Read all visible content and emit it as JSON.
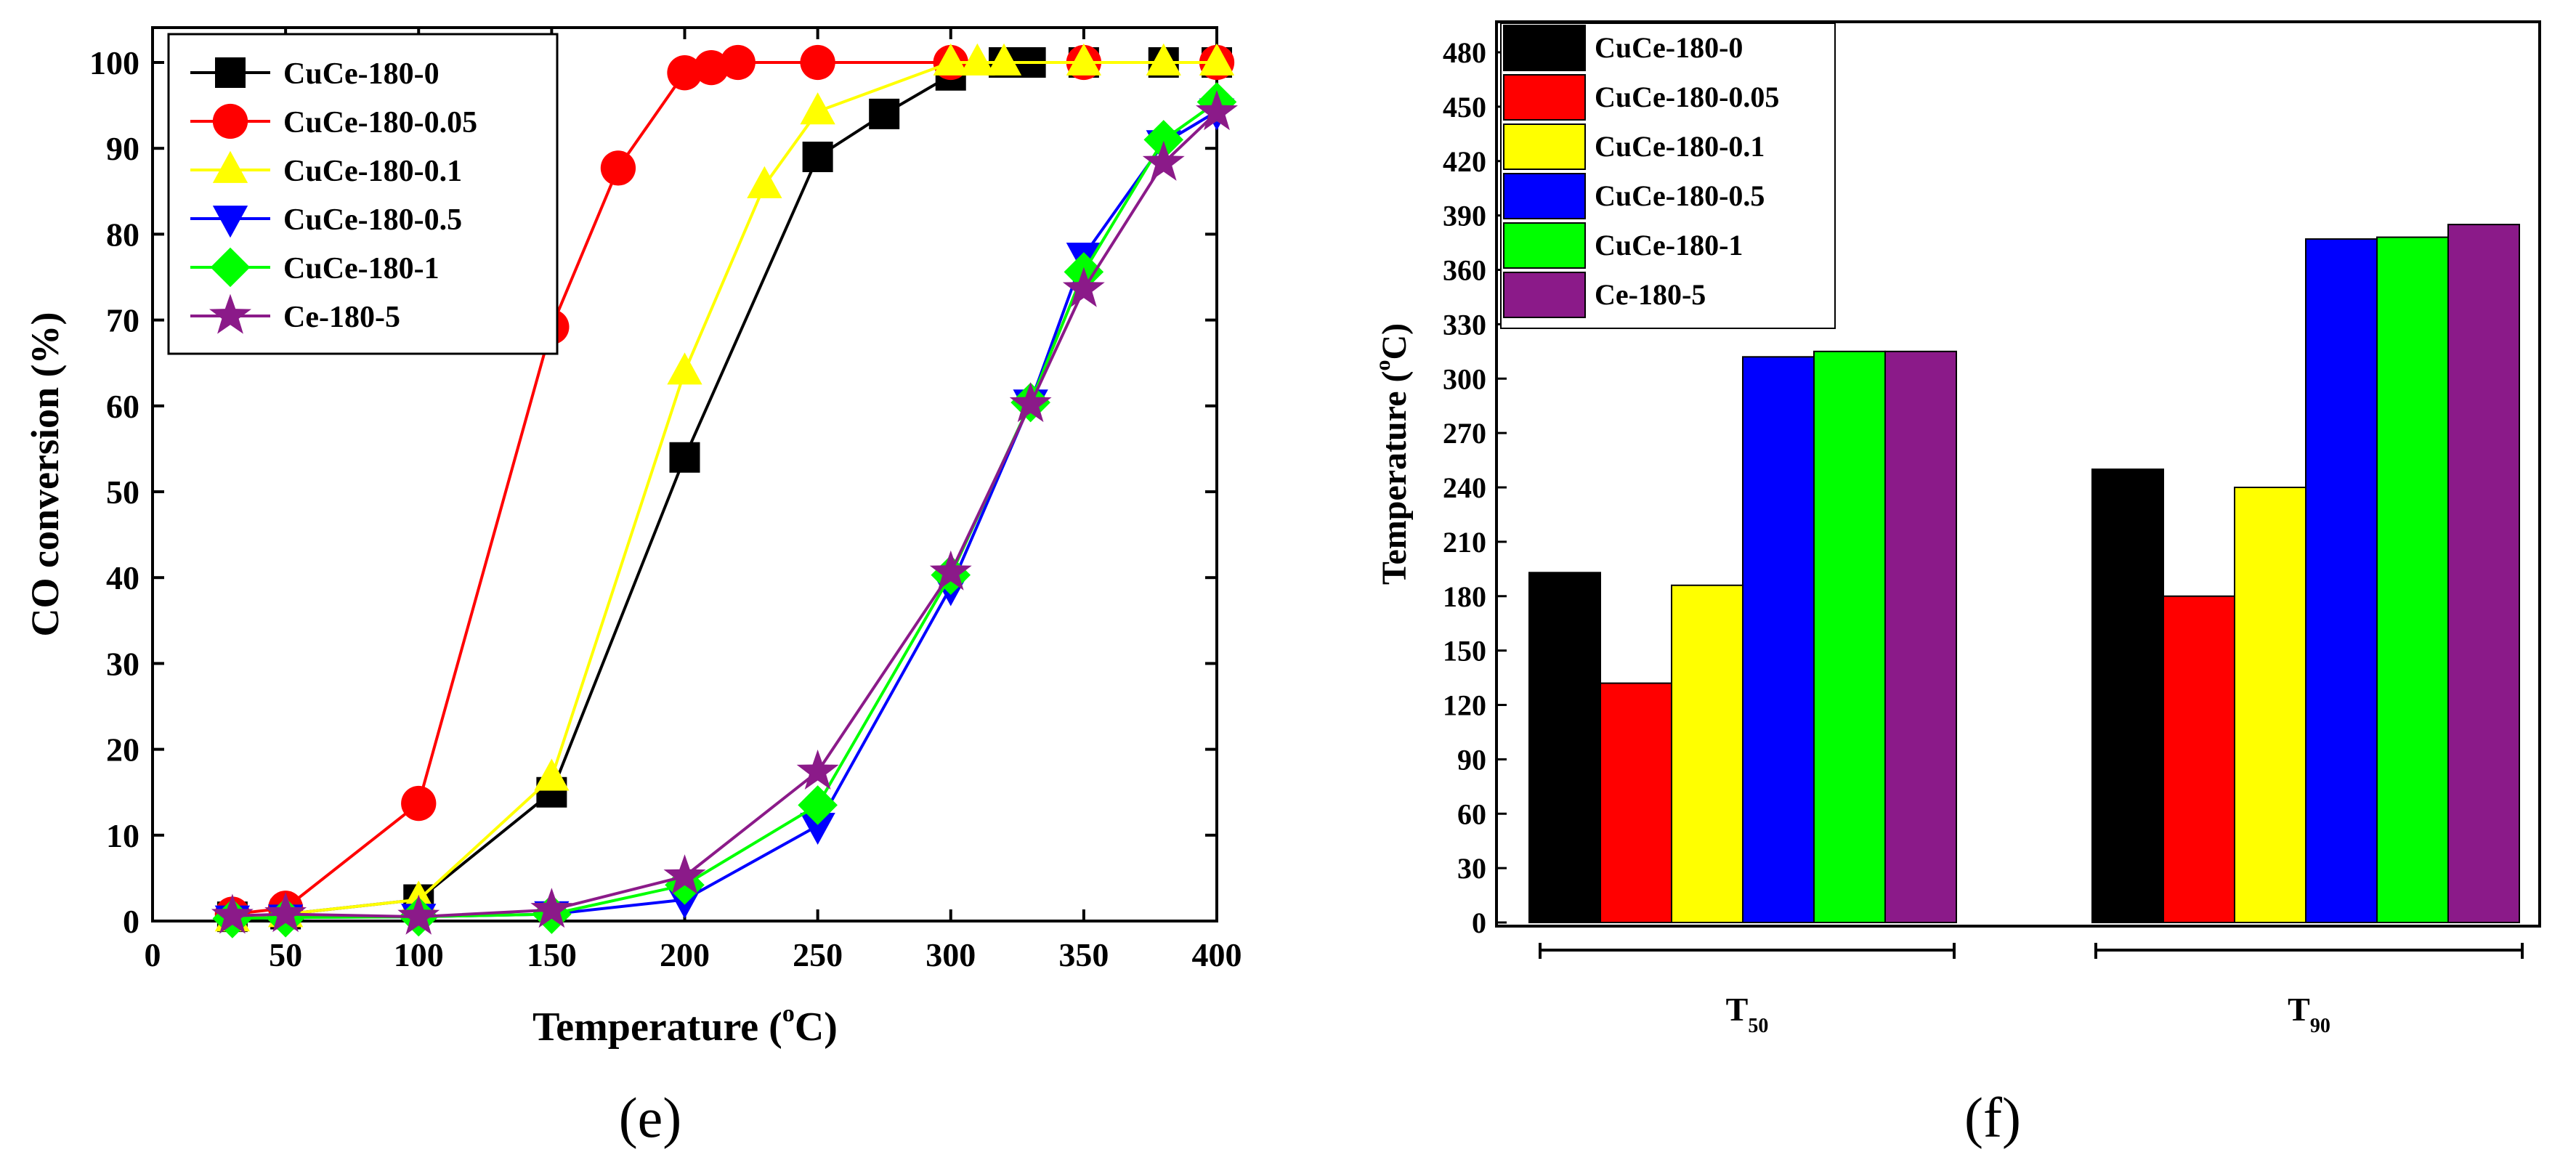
{
  "chart_data": [
    {
      "type": "line",
      "panel": "e",
      "xlabel_text": "Temperature (",
      "xlabel_sup": "o",
      "xlabel_unit": "C)",
      "ylabel": "CO conversion (%)",
      "xlim": [
        0,
        400
      ],
      "ylim": [
        0,
        100
      ],
      "xticks": [
        0,
        50,
        100,
        150,
        200,
        250,
        300,
        350,
        400
      ],
      "yticks": [
        0,
        10,
        20,
        30,
        40,
        50,
        60,
        70,
        80,
        90,
        100
      ],
      "legend_position": "top-left",
      "series": [
        {
          "name": "CuCe-180-0",
          "color": "#000000",
          "marker": "square",
          "x": [
            30,
            50,
            100,
            150,
            200,
            250,
            275,
            300,
            320,
            330,
            350,
            380,
            400
          ],
          "y": [
            0.5,
            0.8,
            2.5,
            15,
            54,
            89,
            94,
            98.5,
            100,
            100,
            100,
            100,
            100
          ]
        },
        {
          "name": "CuCe-180-0.05",
          "color": "#ff0000",
          "marker": "circle",
          "x": [
            30,
            50,
            100,
            150,
            175,
            200,
            210,
            220,
            250,
            300,
            350,
            400
          ],
          "y": [
            0.8,
            1.5,
            13.7,
            69.2,
            87.7,
            98.8,
            99.4,
            100,
            100,
            100,
            100,
            100
          ]
        },
        {
          "name": "CuCe-180-0.1",
          "color": "#ffff00",
          "marker": "triangle-up",
          "x": [
            30,
            50,
            100,
            150,
            200,
            230,
            250,
            300,
            310,
            320,
            350,
            380,
            400
          ],
          "y": [
            0.3,
            0.8,
            2.5,
            16.7,
            64,
            85.7,
            94.3,
            100,
            100,
            100,
            100,
            100,
            100
          ]
        },
        {
          "name": "CuCe-180-0.5",
          "color": "#0000ff",
          "marker": "triangle-down",
          "x": [
            30,
            50,
            100,
            150,
            200,
            250,
            300,
            330,
            350,
            380,
            400
          ],
          "y": [
            0.3,
            0.4,
            0.5,
            0.8,
            2.5,
            11.1,
            38.9,
            60.4,
            77.5,
            90.6,
            94.3
          ]
        },
        {
          "name": "CuCe-180-1",
          "color": "#00ff00",
          "marker": "diamond",
          "x": [
            30,
            50,
            100,
            150,
            200,
            250,
            300,
            330,
            350,
            380,
            400
          ],
          "y": [
            0.3,
            0.4,
            0.5,
            0.8,
            4.2,
            13.5,
            40.3,
            60.4,
            75.6,
            91,
            95.4
          ]
        },
        {
          "name": "Ce-180-5",
          "color": "#8b1a89",
          "marker": "star",
          "x": [
            30,
            50,
            100,
            150,
            200,
            250,
            300,
            330,
            350,
            380,
            400
          ],
          "y": [
            0.6,
            0.8,
            0.5,
            1.3,
            5.2,
            17.4,
            40.6,
            60.2,
            73.6,
            88.3,
            94.2
          ]
        }
      ]
    },
    {
      "type": "bar",
      "panel": "f",
      "ylabel_text": "Temperature (",
      "ylabel_sup": "o",
      "ylabel_unit": "C)",
      "ylim": [
        0,
        495
      ],
      "yticks": [
        0,
        30,
        60,
        90,
        120,
        150,
        180,
        210,
        240,
        270,
        300,
        330,
        360,
        390,
        420,
        450,
        480
      ],
      "groups": [
        {
          "label": "T",
          "subscript": "50"
        },
        {
          "label": "T",
          "subscript": "90"
        }
      ],
      "legend_position": "top-left",
      "series": [
        {
          "name": "CuCe-180-0",
          "color": "#000000",
          "values": [
            193,
            250
          ]
        },
        {
          "name": "CuCe-180-0.05",
          "color": "#ff0000",
          "values": [
            132,
            180
          ]
        },
        {
          "name": "CuCe-180-0.1",
          "color": "#ffff00",
          "values": [
            186,
            240
          ]
        },
        {
          "name": "CuCe-180-0.5",
          "color": "#0000ff",
          "values": [
            312,
            377
          ]
        },
        {
          "name": "CuCe-180-1",
          "color": "#00ff00",
          "values": [
            315,
            378
          ]
        },
        {
          "name": "Ce-180-5",
          "color": "#8b1a89",
          "values": [
            315,
            385
          ]
        }
      ]
    }
  ],
  "captions": {
    "left": "(e)",
    "right": "(f)"
  }
}
